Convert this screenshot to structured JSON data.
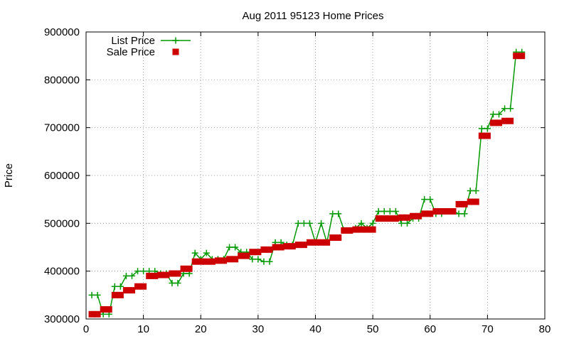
{
  "chart_data": {
    "type": "line",
    "title": "Aug 2011 95123 Home Prices",
    "xlabel": "",
    "ylabel": "Price",
    "xlim": [
      0,
      80
    ],
    "ylim": [
      300000,
      900000
    ],
    "xticks": [
      0,
      10,
      20,
      30,
      40,
      50,
      60,
      70,
      80
    ],
    "yticks": [
      300000,
      400000,
      500000,
      600000,
      700000,
      800000,
      900000
    ],
    "grid": true,
    "legend_position": "top-left",
    "series": [
      {
        "name": "List Price",
        "style": "line-plus",
        "color": "#009900",
        "x": [
          1,
          2,
          3,
          4,
          5,
          6,
          7,
          8,
          9,
          10,
          11,
          12,
          13,
          14,
          15,
          16,
          17,
          18,
          19,
          20,
          21,
          22,
          23,
          24,
          25,
          26,
          27,
          28,
          29,
          30,
          31,
          32,
          33,
          34,
          35,
          36,
          37,
          38,
          39,
          40,
          41,
          42,
          43,
          44,
          45,
          46,
          47,
          48,
          49,
          50,
          51,
          52,
          53,
          54,
          55,
          56,
          57,
          58,
          59,
          60,
          61,
          62,
          63,
          64,
          65,
          66,
          67,
          68,
          69,
          70,
          71,
          72,
          73,
          74,
          75,
          76
        ],
        "y": [
          350000,
          350000,
          310000,
          310000,
          368000,
          368000,
          390000,
          390000,
          400000,
          400000,
          400000,
          400000,
          395000,
          395000,
          375000,
          375000,
          395000,
          395000,
          438000,
          425000,
          438000,
          425000,
          425000,
          425000,
          450000,
          450000,
          440000,
          440000,
          425000,
          425000,
          420000,
          420000,
          460000,
          460000,
          455000,
          455000,
          500000,
          500000,
          500000,
          460000,
          500000,
          460000,
          520000,
          520000,
          485000,
          485000,
          490000,
          500000,
          490000,
          500000,
          525000,
          525000,
          525000,
          525000,
          500000,
          500000,
          510000,
          510000,
          550000,
          550000,
          520000,
          520000,
          525000,
          525000,
          520000,
          520000,
          568000,
          568000,
          698000,
          698000,
          728000,
          728000,
          740000,
          740000,
          858000,
          858000
        ]
      },
      {
        "name": "Sale Price",
        "style": "filled-square",
        "color": "#cc0000",
        "x": [
          1,
          2,
          3,
          4,
          5,
          6,
          7,
          8,
          9,
          10,
          11,
          12,
          13,
          14,
          15,
          16,
          17,
          18,
          19,
          20,
          21,
          22,
          23,
          24,
          25,
          26,
          27,
          28,
          29,
          30,
          31,
          32,
          33,
          34,
          35,
          36,
          37,
          38,
          39,
          40,
          41,
          42,
          43,
          44,
          45,
          46,
          47,
          48,
          49,
          50,
          51,
          52,
          53,
          54,
          55,
          56,
          57,
          58,
          59,
          60,
          61,
          62,
          63,
          64,
          65,
          66,
          67,
          68,
          69,
          70,
          71,
          72,
          73,
          74,
          75,
          76
        ],
        "y": [
          310000,
          310000,
          320000,
          320000,
          350000,
          350000,
          360000,
          360000,
          368000,
          368000,
          390000,
          390000,
          392000,
          392000,
          395000,
          395000,
          405000,
          405000,
          420000,
          420000,
          420000,
          420000,
          422000,
          422000,
          425000,
          425000,
          432000,
          432000,
          440000,
          440000,
          445000,
          445000,
          450000,
          450000,
          452000,
          452000,
          455000,
          455000,
          460000,
          460000,
          460000,
          460000,
          470000,
          470000,
          485000,
          485000,
          487000,
          487000,
          487000,
          487000,
          510000,
          510000,
          510000,
          510000,
          512000,
          512000,
          515000,
          515000,
          520000,
          520000,
          525000,
          525000,
          525000,
          525000,
          540000,
          540000,
          545000,
          545000,
          683000,
          683000,
          710000,
          710000,
          714000,
          714000,
          850000,
          850000
        ]
      }
    ]
  }
}
